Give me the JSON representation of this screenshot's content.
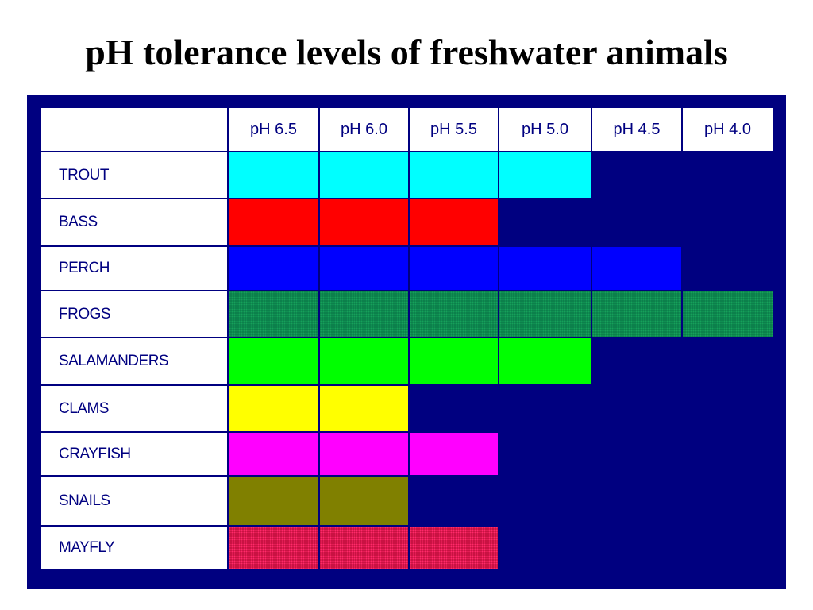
{
  "title": "pH tolerance levels of freshwater animals",
  "chart_data": {
    "type": "table",
    "title": "pH tolerance levels of freshwater animals",
    "columns": [
      "pH 6.5",
      "pH 6.0",
      "pH 5.5",
      "pH 5.0",
      "pH 4.5",
      "pH 4.0"
    ],
    "rows": [
      {
        "name": "TROUT",
        "tolerated_columns": 4,
        "color": "#00ffff",
        "pattern": "solid"
      },
      {
        "name": "BASS",
        "tolerated_columns": 3,
        "color": "#ff0000",
        "pattern": "solid"
      },
      {
        "name": "PERCH",
        "tolerated_columns": 5,
        "color": "#0000ff",
        "pattern": "solid"
      },
      {
        "name": "FROGS",
        "tolerated_columns": 6,
        "color": "#0b7d4a",
        "pattern": "dotted"
      },
      {
        "name": "SALAMANDERS",
        "tolerated_columns": 4,
        "color": "#00ff00",
        "pattern": "solid"
      },
      {
        "name": "CLAMS",
        "tolerated_columns": 2,
        "color": "#ffff00",
        "pattern": "solid"
      },
      {
        "name": "CRAYFISH",
        "tolerated_columns": 3,
        "color": "#ff00ff",
        "pattern": "solid"
      },
      {
        "name": "SNAILS",
        "tolerated_columns": 2,
        "color": "#808000",
        "pattern": "solid"
      },
      {
        "name": "MAYFLY",
        "tolerated_columns": 3,
        "color": "#c4103f",
        "pattern": "dotted"
      }
    ],
    "background_color": "#000080",
    "text_color": "#000080"
  }
}
